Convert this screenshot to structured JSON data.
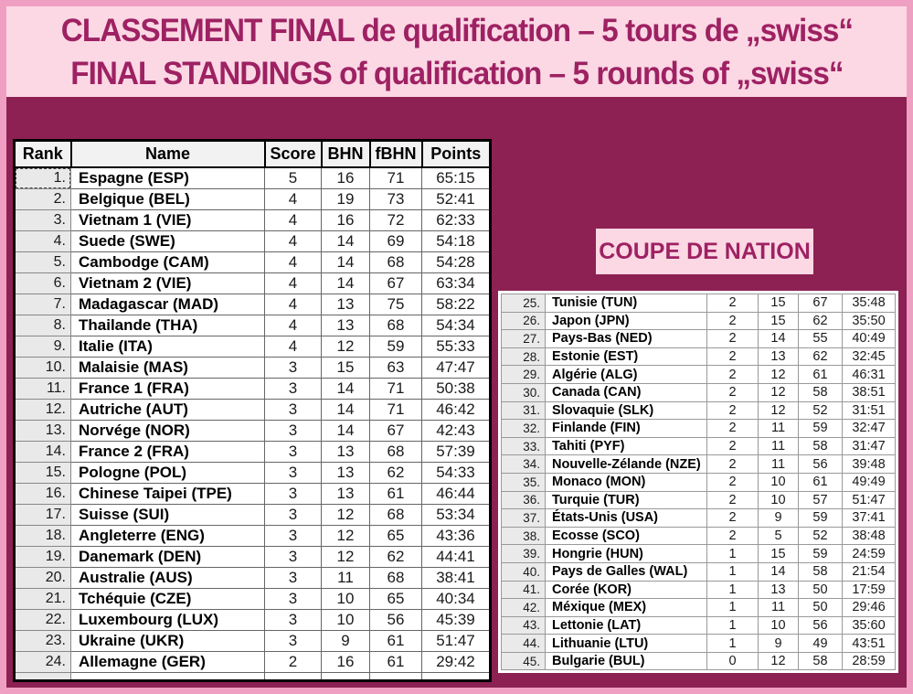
{
  "header": {
    "title_fr": "CLASSEMENT FINAL de qualification – 5 tours de „swiss“",
    "title_en": "FINAL STANDINGS of qualification – 5 rounds of „swiss“"
  },
  "coupe_label": "COUPE DE NATION",
  "colors": {
    "page_background": "#8d2153",
    "outer_border_pink": "#efa0c2",
    "band_pink": "#fbd8e4",
    "title_text": "#9e2163",
    "rank_cell_gray": "#e9e9e9",
    "header_cell_gray": "#f2f2f2"
  },
  "table": {
    "headers": [
      "Rank",
      "Name",
      "Score",
      "BHN",
      "fBHN",
      "Points"
    ],
    "rows_left": [
      [
        "1.",
        "Espagne (ESP)",
        "5",
        "16",
        "71",
        "65:15"
      ],
      [
        "2.",
        "Belgique (BEL)",
        "4",
        "19",
        "73",
        "52:41"
      ],
      [
        "3.",
        "Vietnam 1 (VIE)",
        "4",
        "16",
        "72",
        "62:33"
      ],
      [
        "4.",
        "Suede (SWE)",
        "4",
        "14",
        "69",
        "54:18"
      ],
      [
        "5.",
        "Cambodge (CAM)",
        "4",
        "14",
        "68",
        "54:28"
      ],
      [
        "6.",
        "Vietnam 2 (VIE)",
        "4",
        "14",
        "67",
        "63:34"
      ],
      [
        "7.",
        "Madagascar (MAD)",
        "4",
        "13",
        "75",
        "58:22"
      ],
      [
        "8.",
        "Thailande (THA)",
        "4",
        "13",
        "68",
        "54:34"
      ],
      [
        "9.",
        "Italie (ITA)",
        "4",
        "12",
        "59",
        "55:33"
      ],
      [
        "10.",
        "Malaisie (MAS)",
        "3",
        "15",
        "63",
        "47:47"
      ],
      [
        "11.",
        "France 1 (FRA)",
        "3",
        "14",
        "71",
        "50:38"
      ],
      [
        "12.",
        "Autriche (AUT)",
        "3",
        "14",
        "71",
        "46:42"
      ],
      [
        "13.",
        "Norvége (NOR)",
        "3",
        "14",
        "67",
        "42:43"
      ],
      [
        "14.",
        "France 2 (FRA)",
        "3",
        "13",
        "68",
        "57:39"
      ],
      [
        "15.",
        "Pologne (POL)",
        "3",
        "13",
        "62",
        "54:33"
      ],
      [
        "16.",
        "Chinese Taipei (TPE)",
        "3",
        "13",
        "61",
        "46:44"
      ],
      [
        "17.",
        "Suisse (SUI)",
        "3",
        "12",
        "68",
        "53:34"
      ],
      [
        "18.",
        "Angleterre (ENG)",
        "3",
        "12",
        "65",
        "43:36"
      ],
      [
        "19.",
        "Danemark (DEN)",
        "3",
        "12",
        "62",
        "44:41"
      ],
      [
        "20.",
        "Australie (AUS)",
        "3",
        "11",
        "68",
        "38:41"
      ],
      [
        "21.",
        "Tchéquie (CZE)",
        "3",
        "10",
        "65",
        "40:34"
      ],
      [
        "22.",
        "Luxembourg (LUX)",
        "3",
        "10",
        "56",
        "45:39"
      ],
      [
        "23.",
        "Ukraine (UKR)",
        "3",
        "9",
        "61",
        "51:47"
      ],
      [
        "24.",
        "Allemagne (GER)",
        "2",
        "16",
        "61",
        "29:42"
      ]
    ],
    "rows_right": [
      [
        "25.",
        "Tunisie (TUN)",
        "2",
        "15",
        "67",
        "35:48"
      ],
      [
        "26.",
        "Japon (JPN)",
        "2",
        "15",
        "62",
        "35:50"
      ],
      [
        "27.",
        "Pays-Bas (NED)",
        "2",
        "14",
        "55",
        "40:49"
      ],
      [
        "28.",
        "Estonie (EST)",
        "2",
        "13",
        "62",
        "32:45"
      ],
      [
        "29.",
        "Algérie (ALG)",
        "2",
        "12",
        "61",
        "46:31"
      ],
      [
        "30.",
        "Canada (CAN)",
        "2",
        "12",
        "58",
        "38:51"
      ],
      [
        "31.",
        "Slovaquie (SLK)",
        "2",
        "12",
        "52",
        "31:51"
      ],
      [
        "32.",
        "Finlande (FIN)",
        "2",
        "11",
        "59",
        "32:47"
      ],
      [
        "33.",
        "Tahiti (PYF)",
        "2",
        "11",
        "58",
        "31:47"
      ],
      [
        "34.",
        "Nouvelle-Zélande (NZE)",
        "2",
        "11",
        "56",
        "39:48"
      ],
      [
        "35.",
        "Monaco (MON)",
        "2",
        "10",
        "61",
        "49:49"
      ],
      [
        "36.",
        "Turquie (TUR)",
        "2",
        "10",
        "57",
        "51:47"
      ],
      [
        "37.",
        "États-Unis (USA)",
        "2",
        "9",
        "59",
        "37:41"
      ],
      [
        "38.",
        "Ecosse (SCO)",
        "2",
        "5",
        "52",
        "38:48"
      ],
      [
        "39.",
        "Hongrie (HUN)",
        "1",
        "15",
        "59",
        "24:59"
      ],
      [
        "40.",
        "Pays de Galles (WAL)",
        "1",
        "14",
        "58",
        "21:54"
      ],
      [
        "41.",
        "Corée (KOR)",
        "1",
        "13",
        "50",
        "17:59"
      ],
      [
        "42.",
        "Méxique (MEX)",
        "1",
        "11",
        "50",
        "29:46"
      ],
      [
        "43.",
        "Lettonie (LAT)",
        "1",
        "10",
        "56",
        "35:60"
      ],
      [
        "44.",
        "Lithuanie (LTU)",
        "1",
        "9",
        "49",
        "43:51"
      ],
      [
        "45.",
        "Bulgarie (BUL)",
        "0",
        "12",
        "58",
        "28:59"
      ]
    ]
  }
}
